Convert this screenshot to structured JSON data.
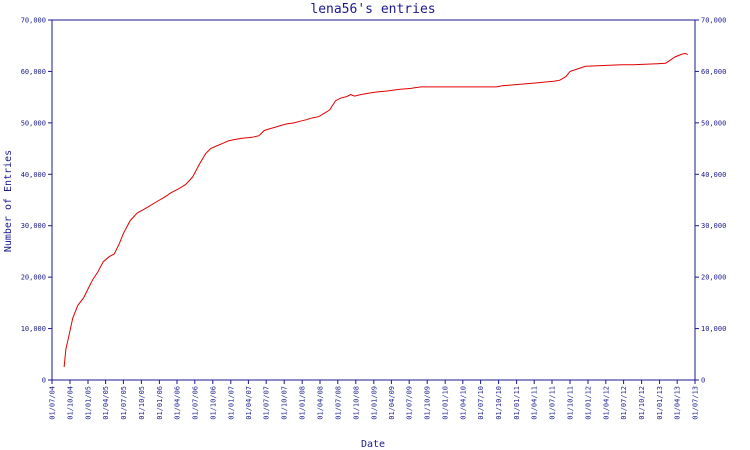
{
  "chart_data": {
    "type": "line",
    "title": "lena56's entries",
    "xlabel": "Date",
    "ylabel": "Number of Entries",
    "ylim": [
      0,
      70000
    ],
    "y_ticks": [
      0,
      10000,
      20000,
      30000,
      40000,
      50000,
      60000,
      70000
    ],
    "y_tick_labels": [
      "0",
      "10,000",
      "20,000",
      "30,000",
      "40,000",
      "50,000",
      "60,000",
      "70,000"
    ],
    "x_ticks": [
      "01/07/04",
      "01/10/04",
      "01/01/05",
      "01/04/05",
      "01/07/05",
      "01/10/05",
      "01/01/06",
      "01/04/06",
      "01/07/06",
      "01/10/06",
      "01/01/07",
      "01/04/07",
      "01/07/07",
      "01/10/07",
      "01/01/08",
      "01/04/08",
      "01/07/08",
      "01/10/08",
      "01/01/09",
      "01/04/09",
      "01/07/09",
      "01/10/09",
      "01/01/10",
      "01/04/10",
      "01/07/10",
      "01/10/10",
      "01/01/11",
      "01/04/11",
      "01/07/11",
      "01/10/11",
      "01/01/12",
      "01/04/12",
      "01/07/12",
      "01/10/12",
      "01/01/13",
      "01/04/13",
      "01/07/13"
    ],
    "grid": false,
    "legend": "none",
    "colors": {
      "series": "#e00000",
      "axis": "#1a1a8c"
    },
    "series": [
      {
        "x": [
          "2004-09-01",
          "2004-09-10",
          "2004-09-25",
          "2004-10-15",
          "2004-11-10",
          "2004-12-10",
          "2005-01-05",
          "2005-01-25",
          "2005-02-20",
          "2005-03-20",
          "2005-04-20",
          "2005-05-15",
          "2005-06-10",
          "2005-07-01",
          "2005-08-05",
          "2005-09-10",
          "2005-10-05",
          "2005-11-10",
          "2005-12-20",
          "2006-01-25",
          "2006-03-01",
          "2006-04-10",
          "2006-05-15",
          "2006-06-20",
          "2006-07-25",
          "2006-08-25",
          "2006-09-20",
          "2006-10-20",
          "2006-11-20",
          "2006-12-20",
          "2007-01-15",
          "2007-03-01",
          "2007-04-20",
          "2007-05-25",
          "2007-06-20",
          "2007-07-15",
          "2007-08-20",
          "2007-09-15",
          "2007-10-15",
          "2007-11-20",
          "2007-12-20",
          "2008-01-20",
          "2008-02-25",
          "2008-03-25",
          "2008-04-20",
          "2008-05-20",
          "2008-06-20",
          "2008-07-15",
          "2008-08-15",
          "2008-09-05",
          "2008-09-25",
          "2008-10-25",
          "2008-11-25",
          "2009-01-15",
          "2009-03-10",
          "2009-05-10",
          "2009-07-10",
          "2009-07-25",
          "2009-09-01",
          "2009-10-20",
          "2010-01-10",
          "2010-04-20",
          "2010-07-10",
          "2010-09-20",
          "2010-10-20",
          "2010-12-20",
          "2011-02-20",
          "2011-04-20",
          "2011-06-10",
          "2011-07-10",
          "2011-08-10",
          "2011-09-10",
          "2011-10-01",
          "2011-11-10",
          "2011-12-20",
          "2012-02-20",
          "2012-04-20",
          "2012-06-20",
          "2012-08-20",
          "2012-10-20",
          "2012-12-20",
          "2013-02-01",
          "2013-02-25",
          "2013-03-20",
          "2013-04-20",
          "2013-05-10",
          "2013-05-25"
        ],
        "y": [
          2500,
          6000,
          8500,
          12000,
          14500,
          16000,
          18000,
          19500,
          21000,
          23000,
          24000,
          24500,
          26500,
          28500,
          31000,
          32500,
          33000,
          33800,
          34700,
          35500,
          36400,
          37200,
          38000,
          39500,
          42000,
          44000,
          45000,
          45500,
          46000,
          46500,
          46700,
          47000,
          47200,
          47500,
          48500,
          48800,
          49200,
          49500,
          49800,
          50000,
          50300,
          50600,
          51000,
          51200,
          51800,
          52500,
          54300,
          54800,
          55100,
          55500,
          55200,
          55500,
          55700,
          56000,
          56200,
          56500,
          56700,
          56800,
          57000,
          57000,
          57000,
          57000,
          57000,
          57000,
          57200,
          57400,
          57600,
          57800,
          58000,
          58100,
          58300,
          59000,
          60000,
          60500,
          61000,
          61100,
          61200,
          61300,
          61300,
          61400,
          61500,
          61600,
          62200,
          62800,
          63300,
          63500,
          63300
        ]
      }
    ]
  }
}
